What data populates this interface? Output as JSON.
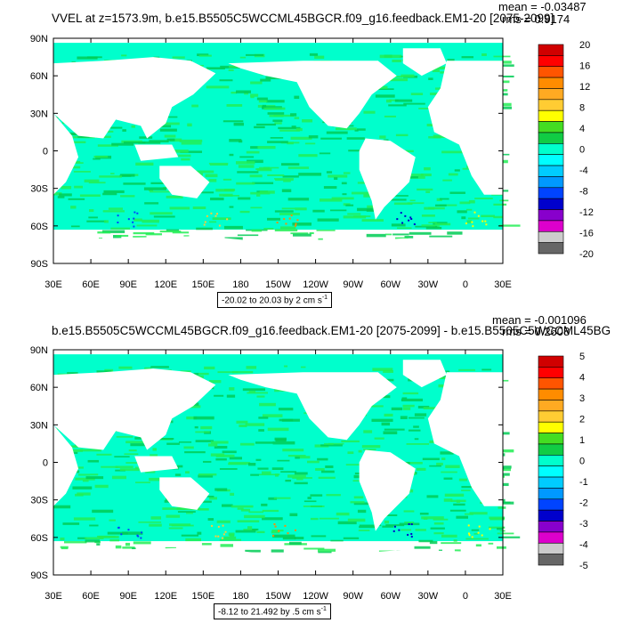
{
  "colors": {
    "land": "#ffffff",
    "ocean_main": "#00ffcc",
    "ocean_alt": "#22ee55",
    "ocean_dark": "#00cc55",
    "frame": "#000000"
  },
  "chart_data": [
    {
      "type": "heatmap",
      "title": "VVEL at z=1573.9m, b.e15.B5505C5WCCML45BGCR.f09_g16.feedback.EM1-20 [2075-2099]",
      "mean_label": "mean = -0.03487",
      "rms_label": "rms = 0.9174",
      "range_label": "-20.02 to 20.03 by 2 cm s",
      "range_unit_exp": "-1",
      "y_ticks": [
        "90N",
        "60N",
        "30N",
        "0",
        "30S",
        "60S",
        "90S"
      ],
      "x_ticks": [
        "30E",
        "60E",
        "90E",
        "120E",
        "150E",
        "180",
        "150W",
        "120W",
        "90W",
        "60W",
        "30W",
        "0",
        "30E"
      ],
      "colorbar": {
        "labels": [
          "20",
          "16",
          "12",
          "8",
          "4",
          "0",
          "-4",
          "-8",
          "-12",
          "-16",
          "-20"
        ],
        "colors": [
          "#d00000",
          "#ff0000",
          "#ff5500",
          "#ff8c00",
          "#ffaa22",
          "#ffcc33",
          "#ffff00",
          "#44dd22",
          "#11cc44",
          "#00ffcc",
          "#00ffff",
          "#00ccff",
          "#0099ff",
          "#0044ff",
          "#0000cc",
          "#8800cc",
          "#dd00cc",
          "#cccccc",
          "#666666"
        ]
      }
    },
    {
      "type": "heatmap",
      "title": "b.e15.B5505C5WCCML45BGCR.f09_g16.feedback.EM1-20 [2075-2099] - b.e15.B5505C5WCCML45BG",
      "mean_label": "mean = -0.001096",
      "rms_label": "rms = 0.2608",
      "range_label": "-8.12 to 21.492 by .5 cm s",
      "range_unit_exp": "-1",
      "y_ticks": [
        "90N",
        "60N",
        "30N",
        "0",
        "30S",
        "60S",
        "90S"
      ],
      "x_ticks": [
        "30E",
        "60E",
        "90E",
        "120E",
        "150E",
        "180",
        "150W",
        "120W",
        "90W",
        "60W",
        "30W",
        "0",
        "30E"
      ],
      "colorbar": {
        "labels": [
          "5",
          "4",
          "3",
          "2",
          "1",
          "0",
          "-1",
          "-2",
          "-3",
          "-4",
          "-5"
        ],
        "colors": [
          "#d00000",
          "#ff0000",
          "#ff5500",
          "#ff8c00",
          "#ffaa22",
          "#ffcc33",
          "#ffff00",
          "#44dd22",
          "#11cc44",
          "#00ffcc",
          "#00ffff",
          "#00ccff",
          "#0099ff",
          "#0044ff",
          "#0000cc",
          "#8800cc",
          "#dd00cc",
          "#cccccc",
          "#666666"
        ]
      }
    }
  ]
}
